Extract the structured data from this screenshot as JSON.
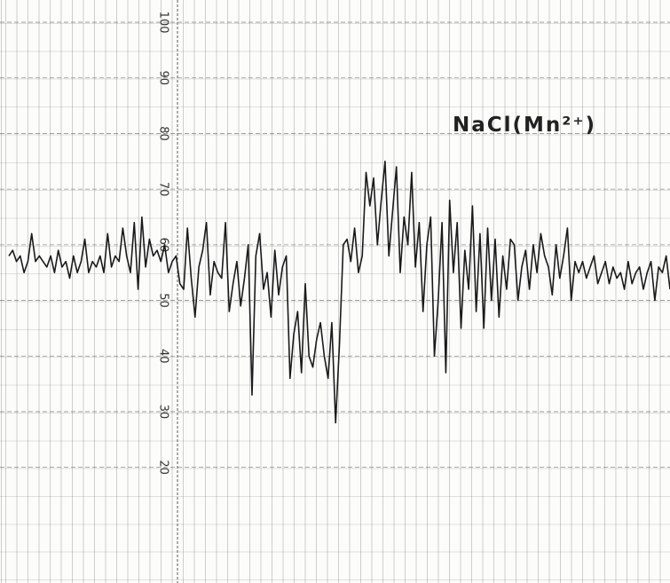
{
  "chart_data": {
    "type": "line",
    "title": "NaCl(Mn²⁺)",
    "values": [
      58,
      59,
      57,
      58,
      55,
      57,
      62,
      57,
      58,
      57,
      56,
      58,
      55,
      59,
      56,
      57,
      54,
      58,
      55,
      57,
      61,
      55,
      57,
      56,
      58,
      55,
      62,
      56,
      58,
      57,
      63,
      58,
      55,
      64,
      52,
      65,
      56,
      61,
      58,
      59,
      57,
      60,
      55,
      57,
      58,
      53,
      52,
      63,
      54,
      47,
      56,
      59,
      64,
      51,
      57,
      55,
      54,
      64,
      48,
      53,
      57,
      49,
      54,
      60,
      33,
      58,
      62,
      52,
      55,
      47,
      59,
      51,
      56,
      58,
      36,
      44,
      48,
      37,
      53,
      40,
      38,
      43,
      46,
      40,
      36,
      46,
      28,
      42,
      60,
      61,
      57,
      63,
      55,
      58,
      73,
      67,
      72,
      60,
      68,
      75,
      58,
      66,
      74,
      55,
      65,
      60,
      73,
      56,
      64,
      48,
      60,
      65,
      40,
      50,
      64,
      37,
      68,
      55,
      64,
      45,
      59,
      52,
      67,
      48,
      62,
      45,
      63,
      50,
      61,
      47,
      58,
      52,
      61,
      60,
      50,
      56,
      59,
      52,
      60,
      55,
      62,
      58,
      56,
      51,
      60,
      54,
      58,
      63,
      50,
      57,
      55,
      57,
      54,
      56,
      58,
      53,
      55,
      57,
      53,
      56,
      54,
      55,
      52,
      57,
      53,
      55,
      56,
      52,
      55,
      57,
      50,
      56,
      55,
      58,
      52
    ],
    "color": "#1a1a1a",
    "ylim": [
      0,
      104
    ],
    "yticks": [
      20,
      30,
      40,
      50,
      60,
      70,
      80,
      90,
      100
    ],
    "grid": true
  }
}
